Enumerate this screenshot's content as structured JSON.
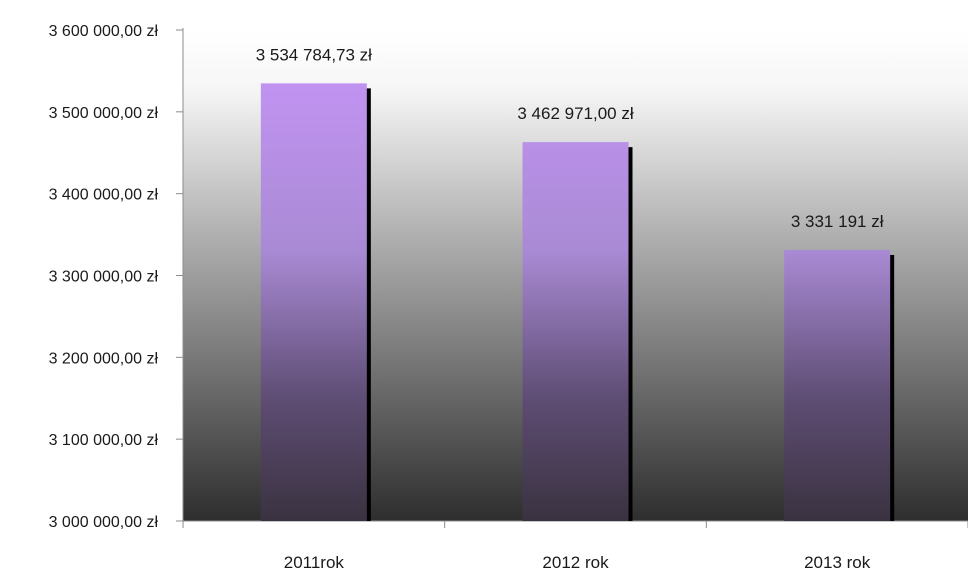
{
  "chart_data": {
    "type": "bar",
    "title": "",
    "xlabel": "",
    "ylabel": "",
    "categories": [
      "2011rok",
      "2012 rok",
      "2013 rok"
    ],
    "values": [
      3534784.73,
      3462971.0,
      3331191
    ],
    "data_labels": [
      "3 534 784,73 zł",
      "3 462 971,00 zł",
      "3 331 191 zł"
    ],
    "ylim": [
      3000000,
      3600000
    ],
    "yticks": [
      3000000,
      3100000,
      3200000,
      3300000,
      3400000,
      3500000,
      3600000
    ],
    "ytick_labels": [
      "3 000 000,00 zł",
      "3 100 000,00 zł",
      "3 200 000,00 zł",
      "3 300 000,00 zł",
      "3 400 000,00 zł",
      "3 500 000,00 zł",
      "3 600 000,00 zł"
    ],
    "grid": false,
    "legend": "none",
    "colors": {
      "bar_top": "#c896fa",
      "bar_bottom": "#3a3240",
      "bar_shadow": "#000000",
      "plot_bg_top": "#ffffff",
      "plot_bg_bottom": "#2e2e2e",
      "axis": "#8c8c8c"
    }
  }
}
